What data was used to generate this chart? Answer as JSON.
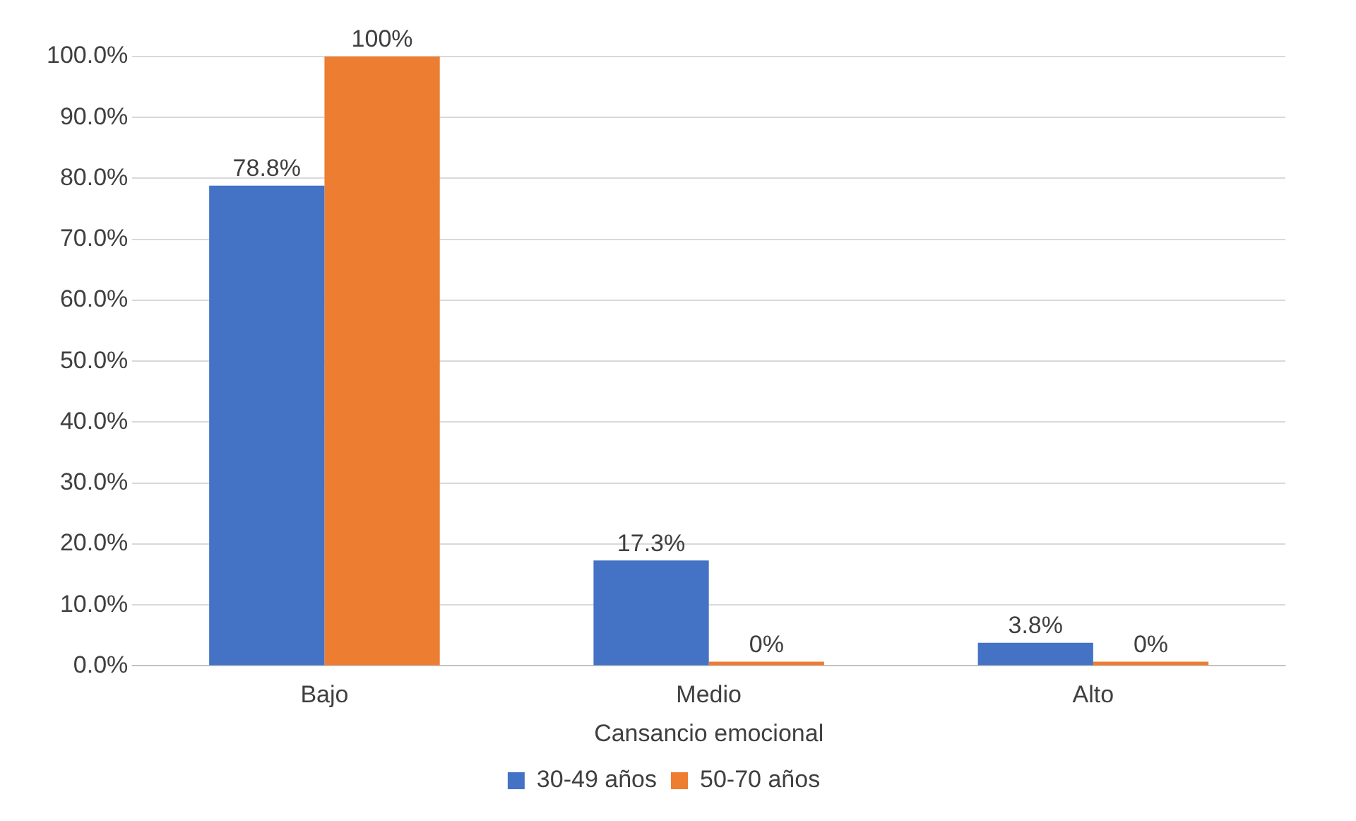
{
  "chart_data": {
    "type": "bar",
    "xlabel": "Cansancio emocional",
    "categories": [
      "Bajo",
      "Medio",
      "Alto"
    ],
    "series": [
      {
        "name": "30-49 años",
        "color": "#4472c4",
        "values": [
          78.8,
          17.3,
          3.8
        ],
        "value_labels": [
          "78.8%",
          "17.3%",
          "3.8%"
        ]
      },
      {
        "name": "50-70 años",
        "color": "#ed7d31",
        "values": [
          100,
          0,
          0
        ],
        "value_labels": [
          "100%",
          "0%",
          "0%"
        ]
      }
    ],
    "ylim": [
      0,
      100
    ],
    "yticks": [
      {
        "value": 0,
        "label": "0.0%"
      },
      {
        "value": 10,
        "label": "10.0%"
      },
      {
        "value": 20,
        "label": "20.0%"
      },
      {
        "value": 30,
        "label": "30.0%"
      },
      {
        "value": 40,
        "label": "40.0%"
      },
      {
        "value": 50,
        "label": "50.0%"
      },
      {
        "value": 60,
        "label": "60.0%"
      },
      {
        "value": 70,
        "label": "70.0%"
      },
      {
        "value": 80,
        "label": "80.0%"
      },
      {
        "value": 90,
        "label": "90.0%"
      },
      {
        "value": 100,
        "label": "100.0%"
      }
    ],
    "grid": "y",
    "legend": "bottom"
  }
}
